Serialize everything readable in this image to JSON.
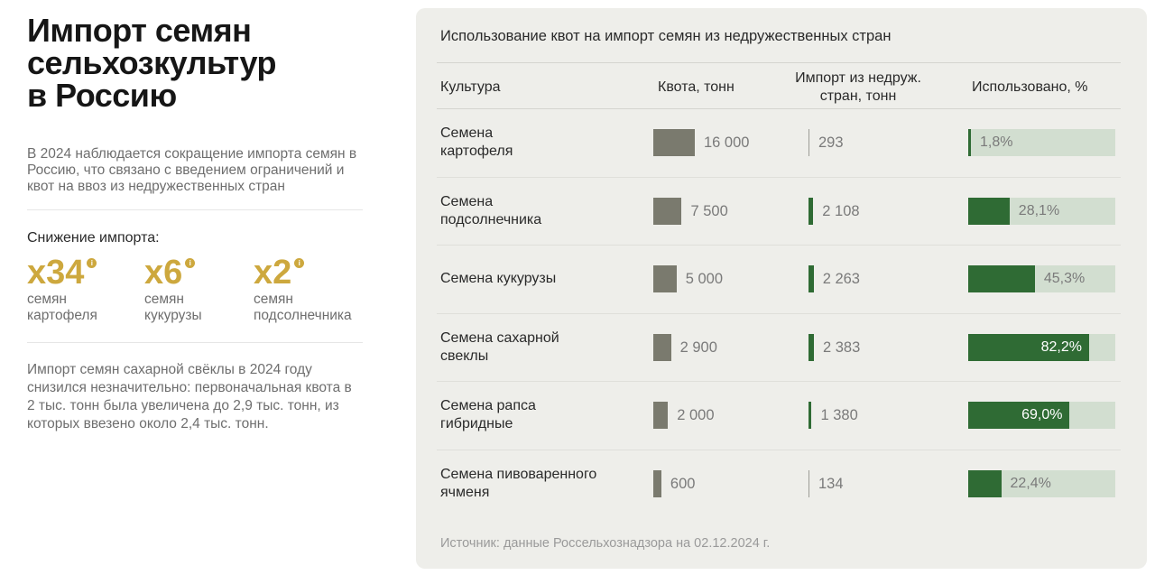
{
  "left": {
    "title_lines": [
      "Импорт семян",
      "сельхозкультур",
      "в Россию"
    ],
    "intro": "В 2024 наблюдается сокращение импорта семян в Россию, что связано с введением ограничений и квот на ввоз из недружественных стран",
    "drop_title": "Снижение импорта:",
    "stats": [
      {
        "value": "x34",
        "label_lines": [
          "семян",
          "картофеля"
        ]
      },
      {
        "value": "x6",
        "label_lines": [
          "семян",
          "кукурузы"
        ]
      },
      {
        "value": "x2",
        "label_lines": [
          "семян",
          "подсолнечника"
        ]
      }
    ],
    "info_glyph": "i",
    "note": "Импорт семян сахарной свёклы в 2024 году снизился незначительно: первоначальная квота в 2 тыс. тонн была увеличена до 2,9 тыс. тонн, из которых ввезено около 2,4 тыс. тонн.",
    "accent_color": "#cda83e"
  },
  "chart_data": {
    "type": "table",
    "title": "Использование квот на импорт семян из недружественных стран",
    "columns": [
      "Культура",
      "Квота, тонн",
      "Импорт из недруж. стран, тонн",
      "Использовано, %"
    ],
    "header_import_lines": [
      "Импорт из недруж.",
      "стран, тонн"
    ],
    "rows": [
      {
        "crop_lines": [
          "Семена",
          "картофеля"
        ],
        "quota": 16000,
        "quota_label": "16 000",
        "import": 293,
        "import_label": "293",
        "used": 1.8,
        "used_label": "1,8%"
      },
      {
        "crop_lines": [
          "Семена",
          "подсолнечника"
        ],
        "quota": 7500,
        "quota_label": "7 500",
        "import": 2108,
        "import_label": "2 108",
        "used": 28.1,
        "used_label": "28,1%"
      },
      {
        "crop_lines": [
          "Семена кукурузы"
        ],
        "quota": 5000,
        "quota_label": "5 000",
        "import": 2263,
        "import_label": "2 263",
        "used": 45.3,
        "used_label": "45,3%"
      },
      {
        "crop_lines": [
          "Семена сахарной",
          "свеклы"
        ],
        "quota": 2900,
        "quota_label": "2 900",
        "import": 2383,
        "import_label": "2 383",
        "used": 82.2,
        "used_label": "82,2%"
      },
      {
        "crop_lines": [
          "Семена рапса",
          "гибридные"
        ],
        "quota": 2000,
        "quota_label": "2 000",
        "import": 1380,
        "import_label": "1 380",
        "used": 69.0,
        "used_label": "69,0%"
      },
      {
        "crop_lines": [
          "Семена пивоваренного",
          "ячменя"
        ],
        "quota": 600,
        "quota_label": "600",
        "import": 134,
        "import_label": "134",
        "used": 22.4,
        "used_label": "22,4%"
      }
    ],
    "source": "Источник: данные Россельхознадзора на 02.12.2024 г.",
    "colors": {
      "quota_bar": "#7a7a6e",
      "import_bar": "#2f6b34",
      "used_fill": "#2f6b34",
      "used_track": "#d2ded0",
      "panel_bg": "#eeeeea"
    }
  }
}
